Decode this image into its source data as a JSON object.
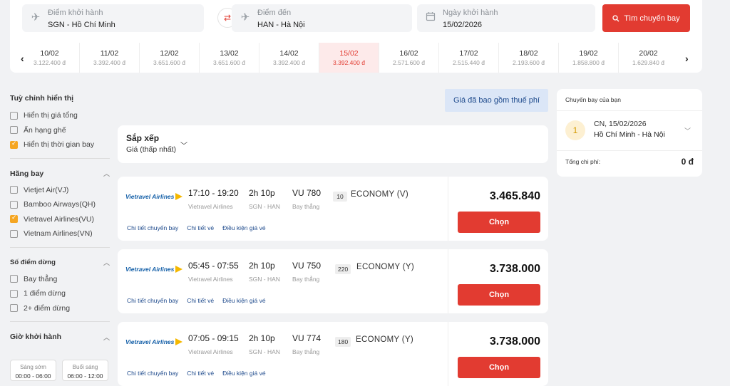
{
  "search": {
    "from_label": "Điểm khởi hành",
    "from_value": "SGN - Hồ Chí Minh",
    "to_label": "Điểm đến",
    "to_value": "HAN - Hà Nội",
    "date_label": "Ngày khởi hành",
    "date_value": "15/02/2026",
    "button_label": "Tìm chuyến bay",
    "swap_icon": "⇄"
  },
  "date_strip": {
    "prev_icon": "‹",
    "next_icon": "›",
    "selected": "15/02",
    "items": [
      {
        "date": "10/02",
        "price": "3.122.400 đ"
      },
      {
        "date": "11/02",
        "price": "3.392.400 đ"
      },
      {
        "date": "12/02",
        "price": "3.651.600 đ"
      },
      {
        "date": "13/02",
        "price": "3.651.600 đ"
      },
      {
        "date": "14/02",
        "price": "3.392.400 đ"
      },
      {
        "date": "15/02",
        "price": "3.392.400 đ"
      },
      {
        "date": "16/02",
        "price": "2.571.600 đ"
      },
      {
        "date": "17/02",
        "price": "2.515.440 đ"
      },
      {
        "date": "18/02",
        "price": "2.193.600 đ"
      },
      {
        "date": "19/02",
        "price": "1.858.800 đ"
      },
      {
        "date": "20/02",
        "price": "1.629.840 đ"
      }
    ]
  },
  "display_options": {
    "title": "Tuỳ chỉnh hiển thị",
    "items": [
      {
        "label": "Hiển thị giá tổng",
        "checked": false
      },
      {
        "label": "Ẩn hạng ghế",
        "checked": false
      },
      {
        "label": "Hiển thị thời gian bay",
        "checked": true
      }
    ]
  },
  "airlines": {
    "title": "Hãng bay",
    "items": [
      {
        "label": "Vietjet Air(VJ)",
        "checked": false
      },
      {
        "label": "Bamboo Airways(QH)",
        "checked": false
      },
      {
        "label": "Vietravel Airlines(VU)",
        "checked": true
      },
      {
        "label": "Vietnam Airlines(VN)",
        "checked": false
      }
    ]
  },
  "stops": {
    "title": "Số điểm dừng",
    "items": [
      {
        "label": "Bay thẳng",
        "checked": false
      },
      {
        "label": "1 điểm dừng",
        "checked": false
      },
      {
        "label": "2+ điểm dừng",
        "checked": false
      }
    ]
  },
  "departure_time": {
    "title": "Giờ khởi hành",
    "slots": [
      {
        "label": "Sáng sớm",
        "range": "00:00 - 06:00"
      },
      {
        "label": "Buổi sáng",
        "range": "06:00 - 12:00"
      }
    ]
  },
  "price_note": "Giá đã bao gồm thuế phí",
  "sort": {
    "title": "Sắp xếp",
    "value": "Giá (thấp nhất)"
  },
  "flights": [
    {
      "airline_logo": "Vietravel Airlines",
      "time": "17:10 - 19:20",
      "airline": "Vietravel Airlines",
      "duration": "2h 10p",
      "route": "SGN - HAN",
      "flight_no": "VU 780",
      "stop": "Bay thẳng",
      "seats": "10",
      "cabin": "ECONOMY (V)",
      "price": "3.465.840",
      "choose": "Chọn",
      "link_detail": "Chi tiết chuyến bay",
      "link_ticket": "Chi tiết vé",
      "link_terms": "Điều kiện giá vé"
    },
    {
      "airline_logo": "Vietravel Airlines",
      "time": "05:45 - 07:55",
      "airline": "Vietravel Airlines",
      "duration": "2h 10p",
      "route": "SGN - HAN",
      "flight_no": "VU 750",
      "stop": "Bay thẳng",
      "seats": "220",
      "cabin": "ECONOMY (Y)",
      "price": "3.738.000",
      "choose": "Chọn",
      "link_detail": "Chi tiết chuyến bay",
      "link_ticket": "Chi tiết vé",
      "link_terms": "Điều kiện giá vé"
    },
    {
      "airline_logo": "Vietravel Airlines",
      "time": "07:05 - 09:15",
      "airline": "Vietravel Airlines",
      "duration": "2h 10p",
      "route": "SGN - HAN",
      "flight_no": "VU 774",
      "stop": "Bay thẳng",
      "seats": "180",
      "cabin": "ECONOMY (Y)",
      "price": "3.738.000",
      "choose": "Chọn",
      "link_detail": "Chi tiết chuyến bay",
      "link_ticket": "Chi tiết vé",
      "link_terms": "Điều kiện giá vé"
    }
  ],
  "your_flight": {
    "title": "Chuyến bay của bạn",
    "index": "1",
    "date": "CN, 15/02/2026",
    "route": "Hồ Chí Minh - Hà Nội",
    "total_label": "Tổng chi phí:",
    "total_value": "0 đ"
  },
  "colors": {
    "accent": "#e23b31",
    "checked": "#f5a623",
    "link": "#1e4a8c"
  }
}
